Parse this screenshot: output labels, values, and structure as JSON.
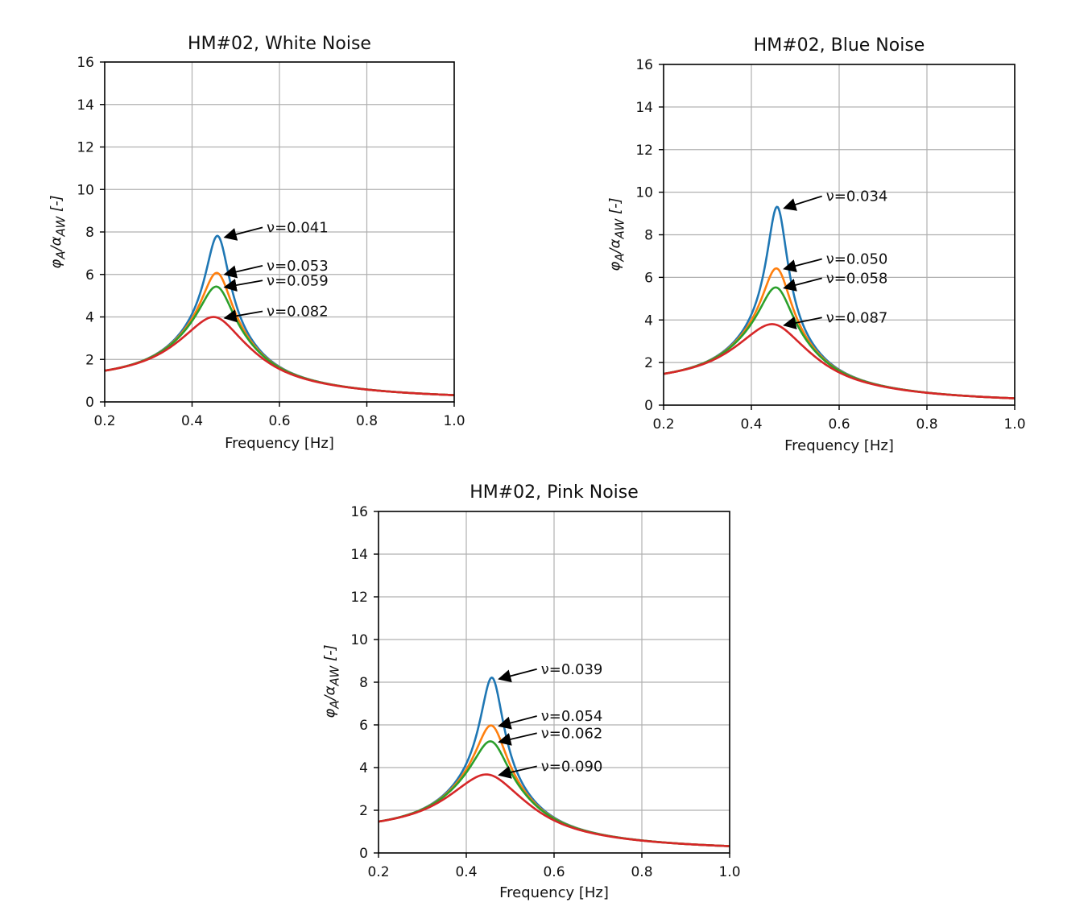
{
  "chart_data": [
    {
      "type": "line",
      "title": "HM#02, White Noise",
      "xlabel": "Frequency [Hz]",
      "ylabel": "φA/αAW [-]",
      "xlim": [
        0.2,
        1.0
      ],
      "ylim": [
        0,
        16
      ],
      "xticks": [
        "0.2",
        "0.4",
        "0.6",
        "0.8",
        "1.0"
      ],
      "yticks": [
        "0",
        "2",
        "4",
        "6",
        "8",
        "10",
        "12",
        "14",
        "16"
      ],
      "grid": true,
      "resonance_hz": 0.46,
      "low_freq_value_at_0_2": 1.47,
      "series": [
        {
          "peak": 7.8,
          "color": "#1f77b4"
        },
        {
          "peak": 6.05,
          "color": "#ff7f0e"
        },
        {
          "peak": 5.4,
          "color": "#2ca02c"
        },
        {
          "peak": 3.95,
          "color": "#d62728"
        }
      ],
      "annotations": [
        {
          "text": "ν=0.041",
          "x": 0.46,
          "y": 7.75,
          "text_y": 8.1
        },
        {
          "text": "ν=0.053",
          "x": 0.46,
          "y": 6.0,
          "text_y": 6.3
        },
        {
          "text": "ν=0.059",
          "x": 0.46,
          "y": 5.4,
          "text_y": 5.6
        },
        {
          "text": "ν=0.082",
          "x": 0.46,
          "y": 3.95,
          "text_y": 4.15
        }
      ]
    },
    {
      "type": "line",
      "title": "HM#02, Blue Noise",
      "xlabel": "Frequency [Hz]",
      "ylabel": "φA/αAW [-]",
      "xlim": [
        0.2,
        1.0
      ],
      "ylim": [
        0,
        16
      ],
      "xticks": [
        "0.2",
        "0.4",
        "0.6",
        "0.8",
        "1.0"
      ],
      "yticks": [
        "0",
        "2",
        "4",
        "6",
        "8",
        "10",
        "12",
        "14",
        "16"
      ],
      "grid": true,
      "resonance_hz": 0.46,
      "low_freq_value_at_0_2": 1.47,
      "series": [
        {
          "peak": 9.3,
          "color": "#1f77b4"
        },
        {
          "peak": 6.4,
          "color": "#ff7f0e"
        },
        {
          "peak": 5.5,
          "color": "#2ca02c"
        },
        {
          "peak": 3.75,
          "color": "#d62728"
        }
      ],
      "annotations": [
        {
          "text": "ν=0.034",
          "x": 0.46,
          "y": 9.25,
          "text_y": 9.7
        },
        {
          "text": "ν=0.050",
          "x": 0.46,
          "y": 6.4,
          "text_y": 6.75
        },
        {
          "text": "ν=0.058",
          "x": 0.46,
          "y": 5.5,
          "text_y": 5.85
        },
        {
          "text": "ν=0.087",
          "x": 0.46,
          "y": 3.75,
          "text_y": 4.0
        }
      ]
    },
    {
      "type": "line",
      "title": "HM#02, Pink Noise",
      "xlabel": "Frequency [Hz]",
      "ylabel": "φA/αAW [-]",
      "xlim": [
        0.2,
        1.0
      ],
      "ylim": [
        0,
        16
      ],
      "xticks": [
        "0.2",
        "0.4",
        "0.6",
        "0.8",
        "1.0"
      ],
      "yticks": [
        "0",
        "2",
        "4",
        "6",
        "8",
        "10",
        "12",
        "14",
        "16"
      ],
      "grid": true,
      "resonance_hz": 0.46,
      "low_freq_value_at_0_2": 1.47,
      "series": [
        {
          "peak": 8.2,
          "color": "#1f77b4"
        },
        {
          "peak": 5.95,
          "color": "#ff7f0e"
        },
        {
          "peak": 5.2,
          "color": "#2ca02c"
        },
        {
          "peak": 3.62,
          "color": "#d62728"
        }
      ],
      "annotations": [
        {
          "text": "ν=0.039",
          "x": 0.46,
          "y": 8.15,
          "text_y": 8.5
        },
        {
          "text": "ν=0.054",
          "x": 0.46,
          "y": 5.95,
          "text_y": 6.3
        },
        {
          "text": "ν=0.062",
          "x": 0.46,
          "y": 5.2,
          "text_y": 5.5
        },
        {
          "text": "ν=0.090",
          "x": 0.46,
          "y": 3.65,
          "text_y": 3.95
        }
      ]
    }
  ]
}
